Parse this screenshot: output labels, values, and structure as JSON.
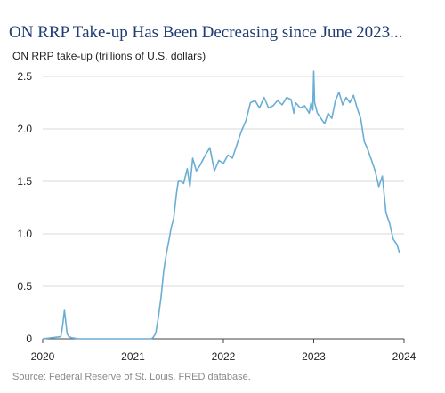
{
  "title": "ON RRP Take-up Has Been Decreasing since June 2023...",
  "source": "Source: Federal Reserve of St. Louis. FRED database.",
  "accent_color": "#6aaed6",
  "chart_data": {
    "type": "line",
    "title": "ON RRP Take-up Has Been Decreasing since June 2023...",
    "ylabel": "ON RRP take-up (trillions of U.S. dollars)",
    "xlabel": "",
    "xlim": [
      2020,
      2024
    ],
    "ylim": [
      0,
      2.5
    ],
    "grid": "horizontal",
    "x_ticks": [
      "2020",
      "2021",
      "2022",
      "2023",
      "2024"
    ],
    "y_ticks": [
      "0",
      "0.5",
      "1.0",
      "1.5",
      "2.0",
      "2.5"
    ],
    "series": [
      {
        "x": [
          2020.0,
          2020.1,
          2020.2,
          2020.22,
          2020.24,
          2020.25,
          2020.27,
          2020.29,
          2020.32,
          2020.4,
          2020.6,
          2020.8,
          2021.0,
          2021.1,
          2021.2,
          2021.22,
          2021.25,
          2021.28,
          2021.31,
          2021.34,
          2021.37,
          2021.4,
          2021.42,
          2021.45,
          2021.48,
          2021.5,
          2021.53,
          2021.56,
          2021.6,
          2021.63,
          2021.66,
          2021.7,
          2021.74,
          2021.77,
          2021.8,
          2021.85,
          2021.9,
          2021.95,
          2022.0,
          2022.05,
          2022.1,
          2022.15,
          2022.2,
          2022.25,
          2022.3,
          2022.35,
          2022.4,
          2022.45,
          2022.5,
          2022.55,
          2022.6,
          2022.65,
          2022.7,
          2022.75,
          2022.78,
          2022.8,
          2022.85,
          2022.9,
          2022.95,
          2022.97,
          2022.99,
          2023.0,
          2023.01,
          2023.04,
          2023.08,
          2023.12,
          2023.16,
          2023.2,
          2023.24,
          2023.28,
          2023.32,
          2023.36,
          2023.4,
          2023.44,
          2023.48,
          2023.52,
          2023.56,
          2023.6,
          2023.64,
          2023.68,
          2023.72,
          2023.76,
          2023.8,
          2023.84,
          2023.88,
          2023.92,
          2023.95
        ],
        "values": [
          0.0,
          0.01,
          0.02,
          0.12,
          0.27,
          0.2,
          0.05,
          0.02,
          0.01,
          0.0,
          0.0,
          0.0,
          0.0,
          0.0,
          0.0,
          0.01,
          0.05,
          0.2,
          0.4,
          0.65,
          0.82,
          0.95,
          1.05,
          1.15,
          1.38,
          1.5,
          1.5,
          1.48,
          1.62,
          1.45,
          1.72,
          1.6,
          1.65,
          1.7,
          1.75,
          1.82,
          1.6,
          1.7,
          1.67,
          1.75,
          1.72,
          1.85,
          1.98,
          2.08,
          2.25,
          2.27,
          2.2,
          2.3,
          2.2,
          2.22,
          2.27,
          2.23,
          2.3,
          2.28,
          2.15,
          2.25,
          2.2,
          2.22,
          2.15,
          2.25,
          2.18,
          2.55,
          2.25,
          2.15,
          2.1,
          2.05,
          2.15,
          2.1,
          2.27,
          2.35,
          2.23,
          2.3,
          2.25,
          2.32,
          2.2,
          2.1,
          1.88,
          1.8,
          1.7,
          1.6,
          1.45,
          1.55,
          1.2,
          1.1,
          0.95,
          0.9,
          0.82
        ]
      }
    ]
  }
}
